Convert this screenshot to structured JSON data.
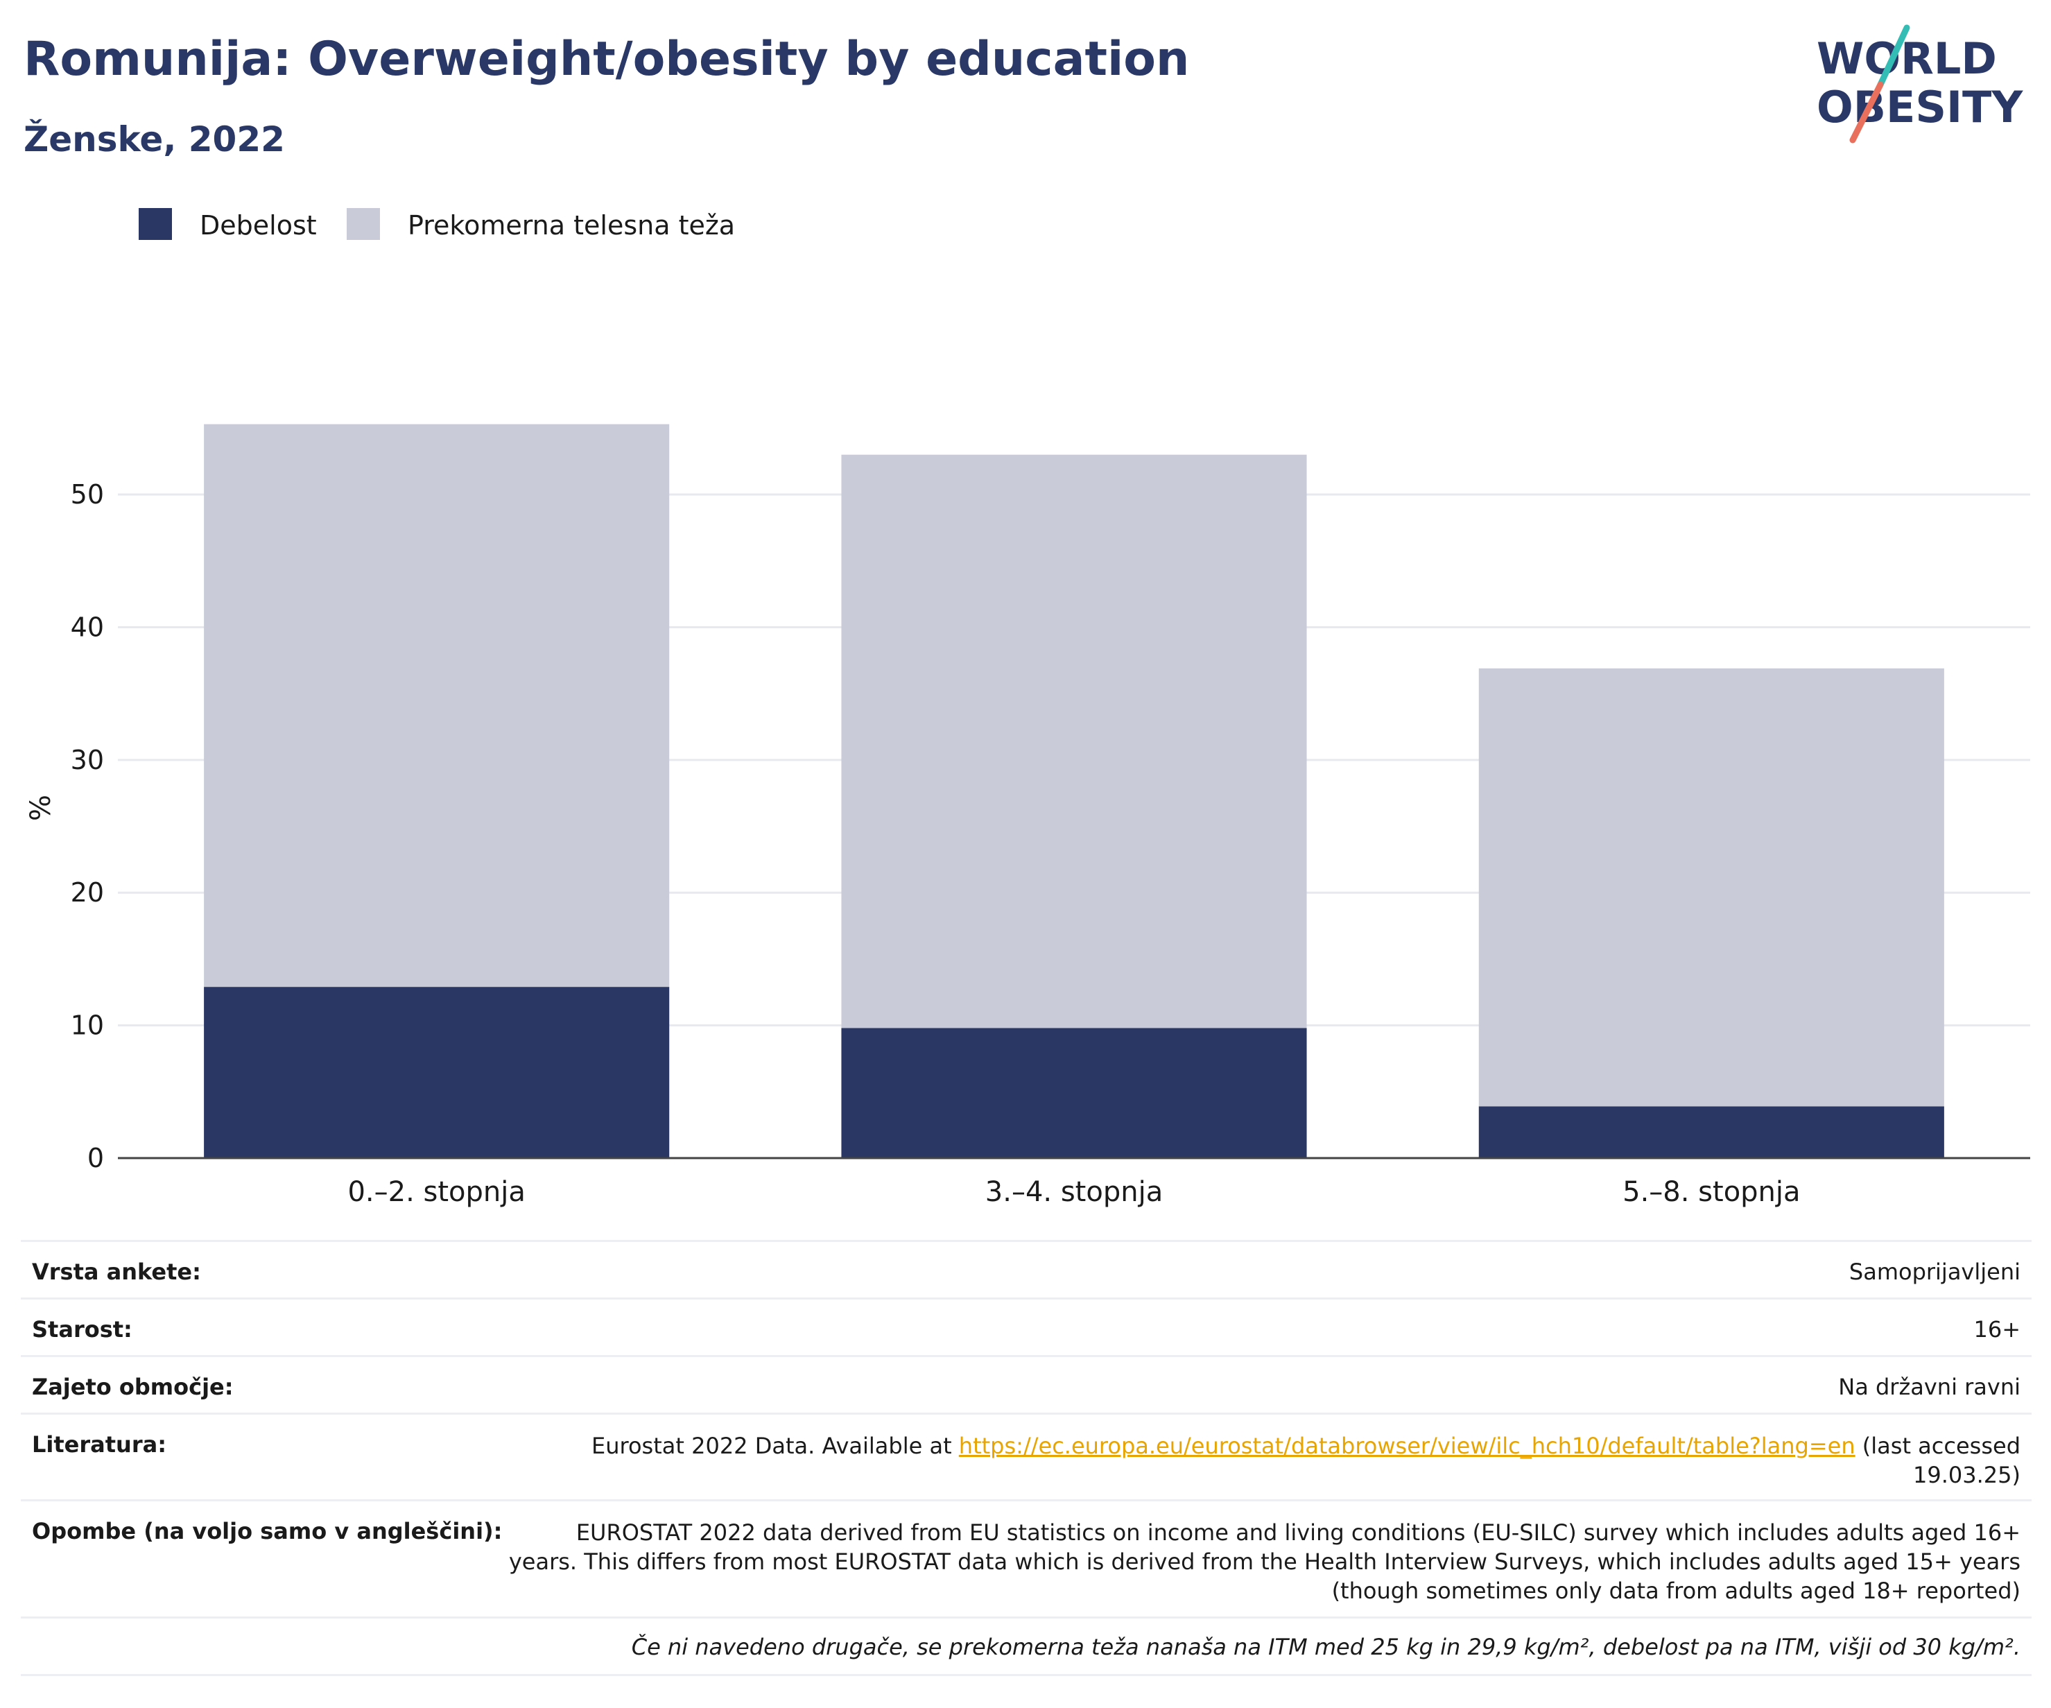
{
  "header": {
    "title": "Romunija: Overweight/obesity by education",
    "subtitle": "Ženske, 2022"
  },
  "logo": {
    "line1": "WORLD",
    "line2": "OBESITY"
  },
  "colors": {
    "obesity": "#2a3765",
    "overweight": "#c9ccd8",
    "title": "#2a3868",
    "link": "#e8a400"
  },
  "chart_data": {
    "type": "bar",
    "stacked": true,
    "categories": [
      "0.–2. stopnja",
      "3.–4. stopnja",
      "5.–8. stopnja"
    ],
    "series": [
      {
        "name": "Debelost",
        "values": [
          12.9,
          9.8,
          3.9
        ]
      },
      {
        "name": "Prekomerna telesna teža",
        "values": [
          42.4,
          43.2,
          33.0
        ]
      }
    ],
    "ylabel": "%",
    "yticks": [
      0,
      10,
      20,
      30,
      40,
      50
    ],
    "ylim": [
      0,
      58
    ],
    "grid": true,
    "legend": "top-left"
  },
  "meta": {
    "rows": [
      {
        "label": "Vrsta ankete:",
        "value": "Samoprijavljeni"
      },
      {
        "label": "Starost:",
        "value": "16+"
      },
      {
        "label": "Zajeto območje:",
        "value": "Na državni ravni"
      }
    ],
    "literature": {
      "label": "Literatura:",
      "prefix": "Eurostat 2022 Data. Available at ",
      "link": "https://ec.europa.eu/eurostat/databrowser/view/ilc_hch10/default/table?lang=en",
      "suffix": " (last accessed",
      "line2": "19.03.25)"
    },
    "notes": {
      "label": "Opombe (na voljo samo v angleščini):",
      "lines": [
        "EUROSTAT 2022 data derived from EU statistics on income and living conditions (EU-SILC) survey which includes adults aged 16+",
        "years. This differs from most EUROSTAT data which is derived from the Health Interview Surveys, which includes adults aged 15+ years",
        "(though sometimes only data from adults aged 18+ reported)"
      ]
    },
    "footnote": "Če ni navedeno drugače, se prekomerna teža nanaša na ITM med 25 kg in 29,9 kg/m², debelost pa na ITM, višji od 30 kg/m²."
  }
}
